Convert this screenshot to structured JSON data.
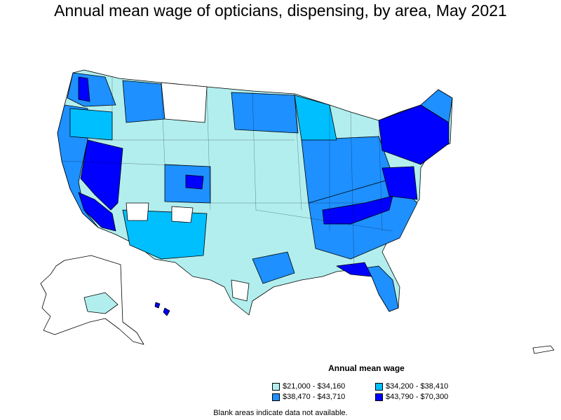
{
  "title": "Annual mean wage of opticians, dispensing, by area, May 2021",
  "legend": {
    "title": "Annual mean wage",
    "items": [
      {
        "label": "$21,000 - $34,160",
        "color": "#b2eeee"
      },
      {
        "label": "$34,200 - $38,410",
        "color": "#00bfff"
      },
      {
        "label": "$38,470 - $43,710",
        "color": "#1e90ff"
      },
      {
        "label": "$43,790 - $70,300",
        "color": "#0000ff"
      }
    ]
  },
  "footnote": "Blank areas indicate data not available."
}
